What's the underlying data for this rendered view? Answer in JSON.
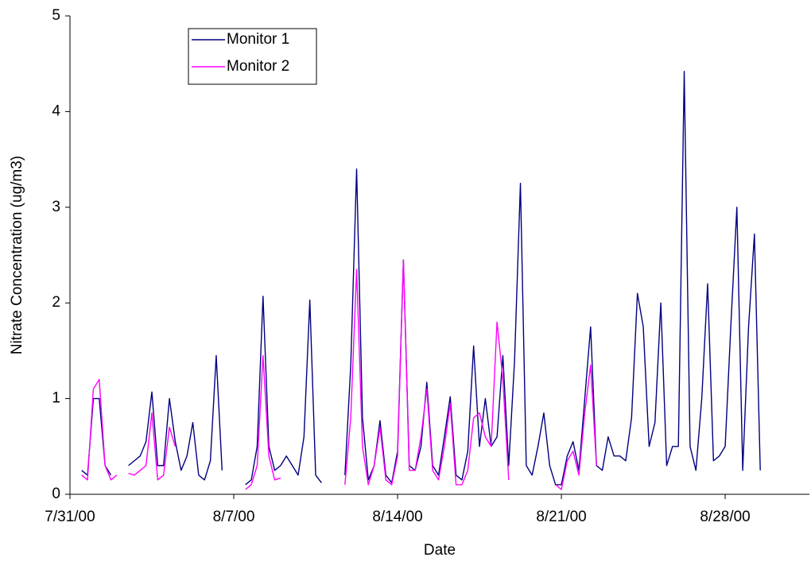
{
  "chart_data": {
    "type": "line",
    "xlabel": "Date",
    "ylabel": "Nitrate Concentration (ug/m3)",
    "x": [
      0.5,
      0.75,
      1,
      1.25,
      1.5,
      1.75,
      2,
      2.25,
      2.5,
      2.75,
      3,
      3.25,
      3.5,
      3.75,
      4,
      4.25,
      4.5,
      4.75,
      5,
      5.25,
      5.5,
      5.75,
      6,
      6.25,
      6.5,
      6.75,
      7,
      7.25,
      7.5,
      7.75,
      8,
      8.25,
      8.5,
      8.75,
      9,
      9.25,
      9.5,
      9.75,
      10,
      10.25,
      10.5,
      10.75,
      11,
      11.25,
      11.5,
      11.75,
      12,
      12.25,
      12.5,
      12.75,
      13,
      13.25,
      13.5,
      13.75,
      14,
      14.25,
      14.5,
      14.75,
      15,
      15.25,
      15.5,
      15.75,
      16,
      16.25,
      16.5,
      16.75,
      17,
      17.25,
      17.5,
      17.75,
      18,
      18.25,
      18.5,
      18.75,
      19,
      19.25,
      19.5,
      19.75,
      20,
      20.25,
      20.5,
      20.75,
      21,
      21.25,
      21.5,
      21.75,
      22,
      22.25,
      22.5,
      22.75,
      23,
      23.25,
      23.5,
      23.75,
      24,
      24.25,
      24.5,
      24.75,
      25,
      25.25,
      25.5,
      25.75,
      26,
      26.25,
      26.5,
      26.75,
      27,
      27.25,
      27.5,
      27.75,
      28,
      28.25,
      28.5,
      28.75,
      29,
      29.25,
      29.5
    ],
    "series": [
      {
        "name": "Monitor 1",
        "color": "#000080",
        "values": [
          0.25,
          0.2,
          1.0,
          1.0,
          0.3,
          0.2,
          null,
          null,
          0.3,
          0.35,
          0.4,
          0.55,
          1.07,
          0.3,
          0.3,
          1.0,
          0.55,
          0.25,
          0.4,
          0.75,
          0.2,
          0.15,
          0.35,
          1.45,
          0.25,
          null,
          null,
          null,
          0.1,
          0.15,
          0.5,
          2.07,
          0.5,
          0.25,
          0.3,
          0.4,
          0.3,
          0.2,
          0.6,
          2.03,
          0.2,
          0.12,
          null,
          null,
          null,
          0.2,
          1.35,
          3.4,
          0.8,
          0.15,
          0.3,
          0.77,
          0.2,
          0.12,
          0.45,
          2.45,
          0.3,
          0.25,
          0.5,
          1.17,
          0.3,
          0.2,
          0.6,
          1.02,
          0.2,
          0.15,
          0.45,
          1.55,
          0.5,
          1.0,
          0.5,
          0.6,
          1.45,
          0.3,
          1.4,
          3.25,
          0.3,
          0.2,
          0.5,
          0.85,
          0.3,
          0.1,
          0.1,
          0.4,
          0.55,
          0.25,
          1.0,
          1.75,
          0.3,
          0.25,
          0.6,
          0.4,
          0.4,
          0.35,
          0.8,
          2.1,
          1.75,
          0.5,
          0.75,
          2.0,
          0.3,
          0.5,
          0.5,
          4.42,
          0.5,
          0.25,
          1.0,
          2.2,
          0.35,
          0.4,
          0.5,
          1.8,
          3.0,
          0.25,
          1.75,
          2.72,
          0.25
        ]
      },
      {
        "name": "Monitor 2",
        "color": "#ff00ff",
        "values": [
          0.2,
          0.15,
          1.1,
          1.2,
          0.3,
          0.15,
          0.2,
          null,
          0.22,
          0.2,
          0.25,
          0.3,
          0.85,
          0.15,
          0.2,
          0.7,
          0.5,
          null,
          null,
          null,
          null,
          null,
          null,
          null,
          null,
          null,
          null,
          null,
          0.05,
          0.1,
          0.3,
          1.45,
          0.4,
          0.15,
          0.17,
          null,
          null,
          null,
          null,
          null,
          null,
          null,
          null,
          null,
          null,
          0.1,
          0.8,
          2.35,
          0.5,
          0.1,
          0.3,
          0.7,
          0.15,
          0.1,
          0.4,
          2.45,
          0.25,
          0.25,
          0.6,
          1.1,
          0.25,
          0.15,
          0.5,
          0.95,
          0.1,
          0.1,
          0.25,
          0.8,
          0.85,
          0.6,
          0.5,
          1.8,
          1.2,
          0.15,
          null,
          null,
          null,
          null,
          null,
          null,
          null,
          0.1,
          0.05,
          0.35,
          0.45,
          0.2,
          0.85,
          1.35,
          0.3,
          null,
          null,
          null,
          null,
          null,
          null,
          null,
          null,
          null,
          null,
          null,
          null,
          null,
          null,
          null,
          null,
          null,
          null,
          null,
          null,
          null,
          null,
          null,
          null,
          null,
          null,
          null,
          null
        ]
      }
    ],
    "xlim": [
      0,
      31.6
    ],
    "xticks": [
      {
        "value": 0,
        "label": "7/31/00"
      },
      {
        "value": 7,
        "label": "8/7/00"
      },
      {
        "value": 14,
        "label": "8/14/00"
      },
      {
        "value": 21,
        "label": "8/21/00"
      },
      {
        "value": 28,
        "label": "8/28/00"
      }
    ],
    "ylim": [
      0,
      5
    ],
    "yticks": [
      0,
      1,
      2,
      3,
      4,
      5
    ],
    "legend": "upper-left"
  }
}
